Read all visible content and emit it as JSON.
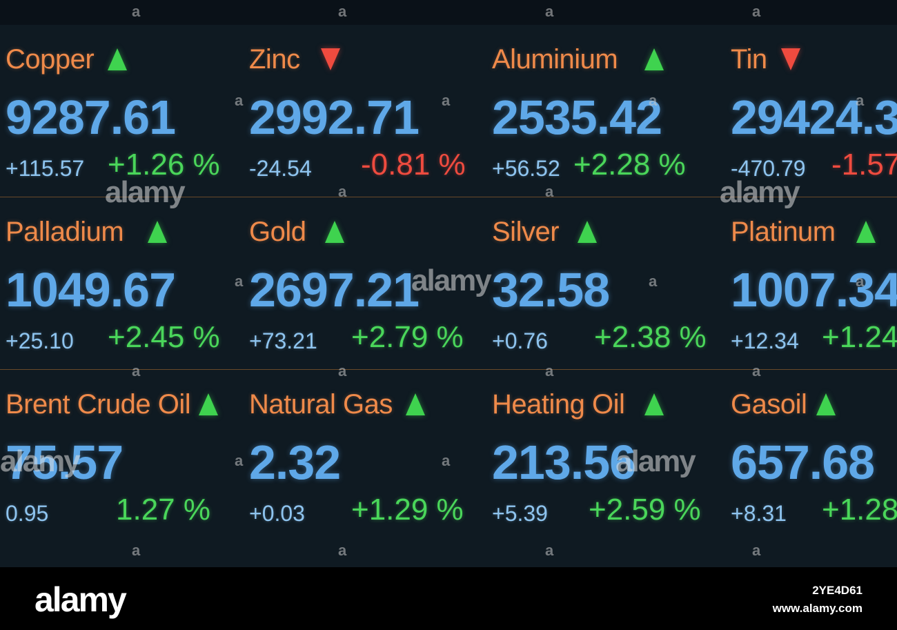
{
  "rows": [
    [
      {
        "name": "Copper",
        "direction": "up",
        "price": "9287.61",
        "change": "+115.57",
        "percent": "+1.26 %"
      },
      {
        "name": "Zinc",
        "direction": "down",
        "price": "2992.71",
        "change": "-24.54",
        "percent": "-0.81 %"
      },
      {
        "name": "Aluminium",
        "direction": "up",
        "price": "2535.42",
        "change": "+56.52",
        "percent": "+2.28 %"
      },
      {
        "name": "Tin",
        "direction": "down",
        "price": "29424.3",
        "change": "-470.79",
        "percent": "-1.57"
      }
    ],
    [
      {
        "name": "Palladium",
        "direction": "up",
        "price": "1049.67",
        "change": "+25.10",
        "percent": "+2.45 %"
      },
      {
        "name": "Gold",
        "direction": "up",
        "price": "2697.21",
        "change": "+73.21",
        "percent": "+2.79 %"
      },
      {
        "name": "Silver",
        "direction": "up",
        "price": "32.58",
        "change": "+0.76",
        "percent": "+2.38 %"
      },
      {
        "name": "Platinum",
        "direction": "up",
        "price": "1007.34",
        "change": "+12.34",
        "percent": "+1.24"
      }
    ],
    [
      {
        "name": "Brent Crude Oil",
        "direction": "up",
        "price": "75.57",
        "change": "0.95",
        "percent": "1.27 %"
      },
      {
        "name": "Natural Gas",
        "direction": "up",
        "price": "2.32",
        "change": "+0.03",
        "percent": "+1.29 %"
      },
      {
        "name": "Heating Oil",
        "direction": "up",
        "price": "213.56",
        "change": "+5.39",
        "percent": "+2.59 %"
      },
      {
        "name": "Gasoil",
        "direction": "up",
        "price": "657.68",
        "change": "+8.31",
        "percent": "+1.28"
      }
    ]
  ],
  "watermark": {
    "text": "alamy",
    "dot": "a"
  },
  "footer": {
    "logo": "alamy",
    "image_id": "2YE4D61",
    "url": "www.alamy.com"
  },
  "colors": {
    "name": "#ef8a4a",
    "price": "#5fa8e8",
    "positive": "#4ad65a",
    "negative": "#ef4b3f"
  }
}
